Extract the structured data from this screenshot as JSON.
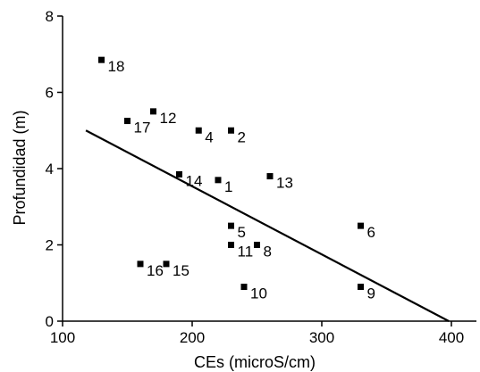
{
  "chart_data": {
    "type": "scatter",
    "xlabel": "CEs (microS/cm)",
    "ylabel": "Profundidad (m)",
    "xlim": [
      100,
      400
    ],
    "ylim": [
      0,
      8
    ],
    "x_ticks": [
      "100",
      "200",
      "300",
      "400"
    ],
    "y_ticks": [
      "0",
      "2",
      "4",
      "6",
      "8"
    ],
    "grid": false,
    "points": [
      {
        "label": "1",
        "x": 220,
        "y": 3.7
      },
      {
        "label": "2",
        "x": 230,
        "y": 5.0
      },
      {
        "label": "4",
        "x": 205,
        "y": 5.0
      },
      {
        "label": "5",
        "x": 230,
        "y": 2.5
      },
      {
        "label": "6",
        "x": 330,
        "y": 2.5
      },
      {
        "label": "8",
        "x": 250,
        "y": 2.0
      },
      {
        "label": "9",
        "x": 330,
        "y": 0.9
      },
      {
        "label": "10",
        "x": 240,
        "y": 0.9
      },
      {
        "label": "11",
        "x": 230,
        "y": 2.0
      },
      {
        "label": "12",
        "x": 170,
        "y": 5.5
      },
      {
        "label": "13",
        "x": 260,
        "y": 3.8
      },
      {
        "label": "14",
        "x": 190,
        "y": 3.85
      },
      {
        "label": "15",
        "x": 180,
        "y": 1.5
      },
      {
        "label": "16",
        "x": 160,
        "y": 1.5
      },
      {
        "label": "17",
        "x": 150,
        "y": 5.25
      },
      {
        "label": "18",
        "x": 130,
        "y": 6.85
      }
    ],
    "trend_line": {
      "x": [
        118,
        398
      ],
      "y": [
        5.0,
        0.0
      ]
    }
  }
}
